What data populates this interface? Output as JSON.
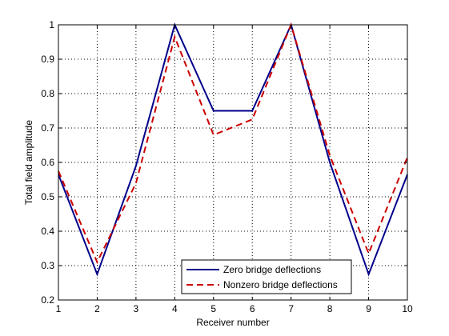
{
  "chart_data": {
    "type": "line",
    "title": "",
    "xlabel": "Receiver number",
    "ylabel": "Total field amplitude",
    "xlim": [
      1,
      10
    ],
    "ylim": [
      0.2,
      1
    ],
    "xticks": [
      "1",
      "2",
      "3",
      "4",
      "5",
      "6",
      "7",
      "8",
      "9",
      "10"
    ],
    "yticks": [
      "0.2",
      "0.3",
      "0.4",
      "0.5",
      "0.6",
      "0.7",
      "0.8",
      "0.9",
      "1"
    ],
    "grid": true,
    "legend_position": "bottom-center",
    "x": [
      1,
      2,
      3,
      4,
      5,
      6,
      7,
      8,
      9,
      10
    ],
    "series": [
      {
        "name": "Zero bridge deflections",
        "values": [
          0.565,
          0.275,
          0.59,
          1.0,
          0.75,
          0.75,
          1.0,
          0.6,
          0.275,
          0.565
        ],
        "color": "#00008b",
        "style": "solid"
      },
      {
        "name": "Nonzero bridge deflections",
        "values": [
          0.575,
          0.31,
          0.54,
          0.965,
          0.68,
          0.725,
          1.0,
          0.62,
          0.335,
          0.615
        ],
        "color": "#cc0000",
        "style": "dashed"
      }
    ]
  }
}
